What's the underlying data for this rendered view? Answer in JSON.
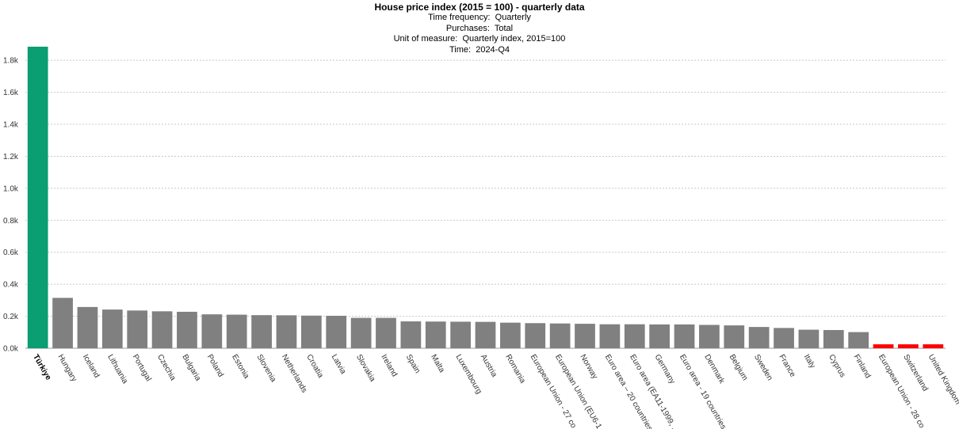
{
  "chart_data": {
    "type": "bar",
    "title": "House price index (2015 = 100) - quarterly data",
    "meta": [
      {
        "label": "Time frequency:",
        "value": "Quarterly"
      },
      {
        "label": "Purchases:",
        "value": "Total"
      },
      {
        "label": "Unit of measure:",
        "value": "Quarterly index, 2015=100"
      },
      {
        "label": "Time:",
        "value": "2024-Q4"
      }
    ],
    "ylim": [
      0,
      1880
    ],
    "yticks": [
      0,
      200,
      400,
      600,
      800,
      1000,
      1200,
      1400,
      1600,
      1800
    ],
    "ytick_labels": [
      "0.0k",
      "0.2k",
      "0.4k",
      "0.6k",
      "0.8k",
      "1.0k",
      "1.2k",
      "1.4k",
      "1.6k",
      "1.8k"
    ],
    "grid": true,
    "colors": {
      "highlight": "#0a9e72",
      "default": "#808080",
      "missing": "#ff0000"
    },
    "categories": [
      "Türkiye",
      "Hungary",
      "Iceland",
      "Lithuania",
      "Portugal",
      "Czechia",
      "Bulgaria",
      "Poland",
      "Estonia",
      "Slovenia",
      "Netherlands",
      "Croatia",
      "Latvia",
      "Slovakia",
      "Ireland",
      "Spain",
      "Malta",
      "Luxembourg",
      "Austria",
      "Romania",
      "European Union - 27 co...",
      "European Union (EU6-1...",
      "Norway",
      "Euro area – 20 countries...",
      "Euro area (EA11-1999, ...",
      "Germany",
      "Euro area - 19 countries...",
      "Denmark",
      "Belgium",
      "Sweden",
      "France",
      "Italy",
      "Cyprus",
      "Finland",
      "European Union - 28 co...",
      "Switzerland",
      "United Kingdom"
    ],
    "values": [
      1885,
      315,
      258,
      242,
      236,
      231,
      228,
      212,
      210,
      207,
      206,
      204,
      203,
      190,
      190,
      168,
      167,
      166,
      165,
      160,
      157,
      155,
      153,
      150,
      150,
      149,
      149,
      146,
      143,
      133,
      127,
      116,
      114,
      101,
      null,
      null,
      null
    ],
    "highlight_index": 0
  }
}
